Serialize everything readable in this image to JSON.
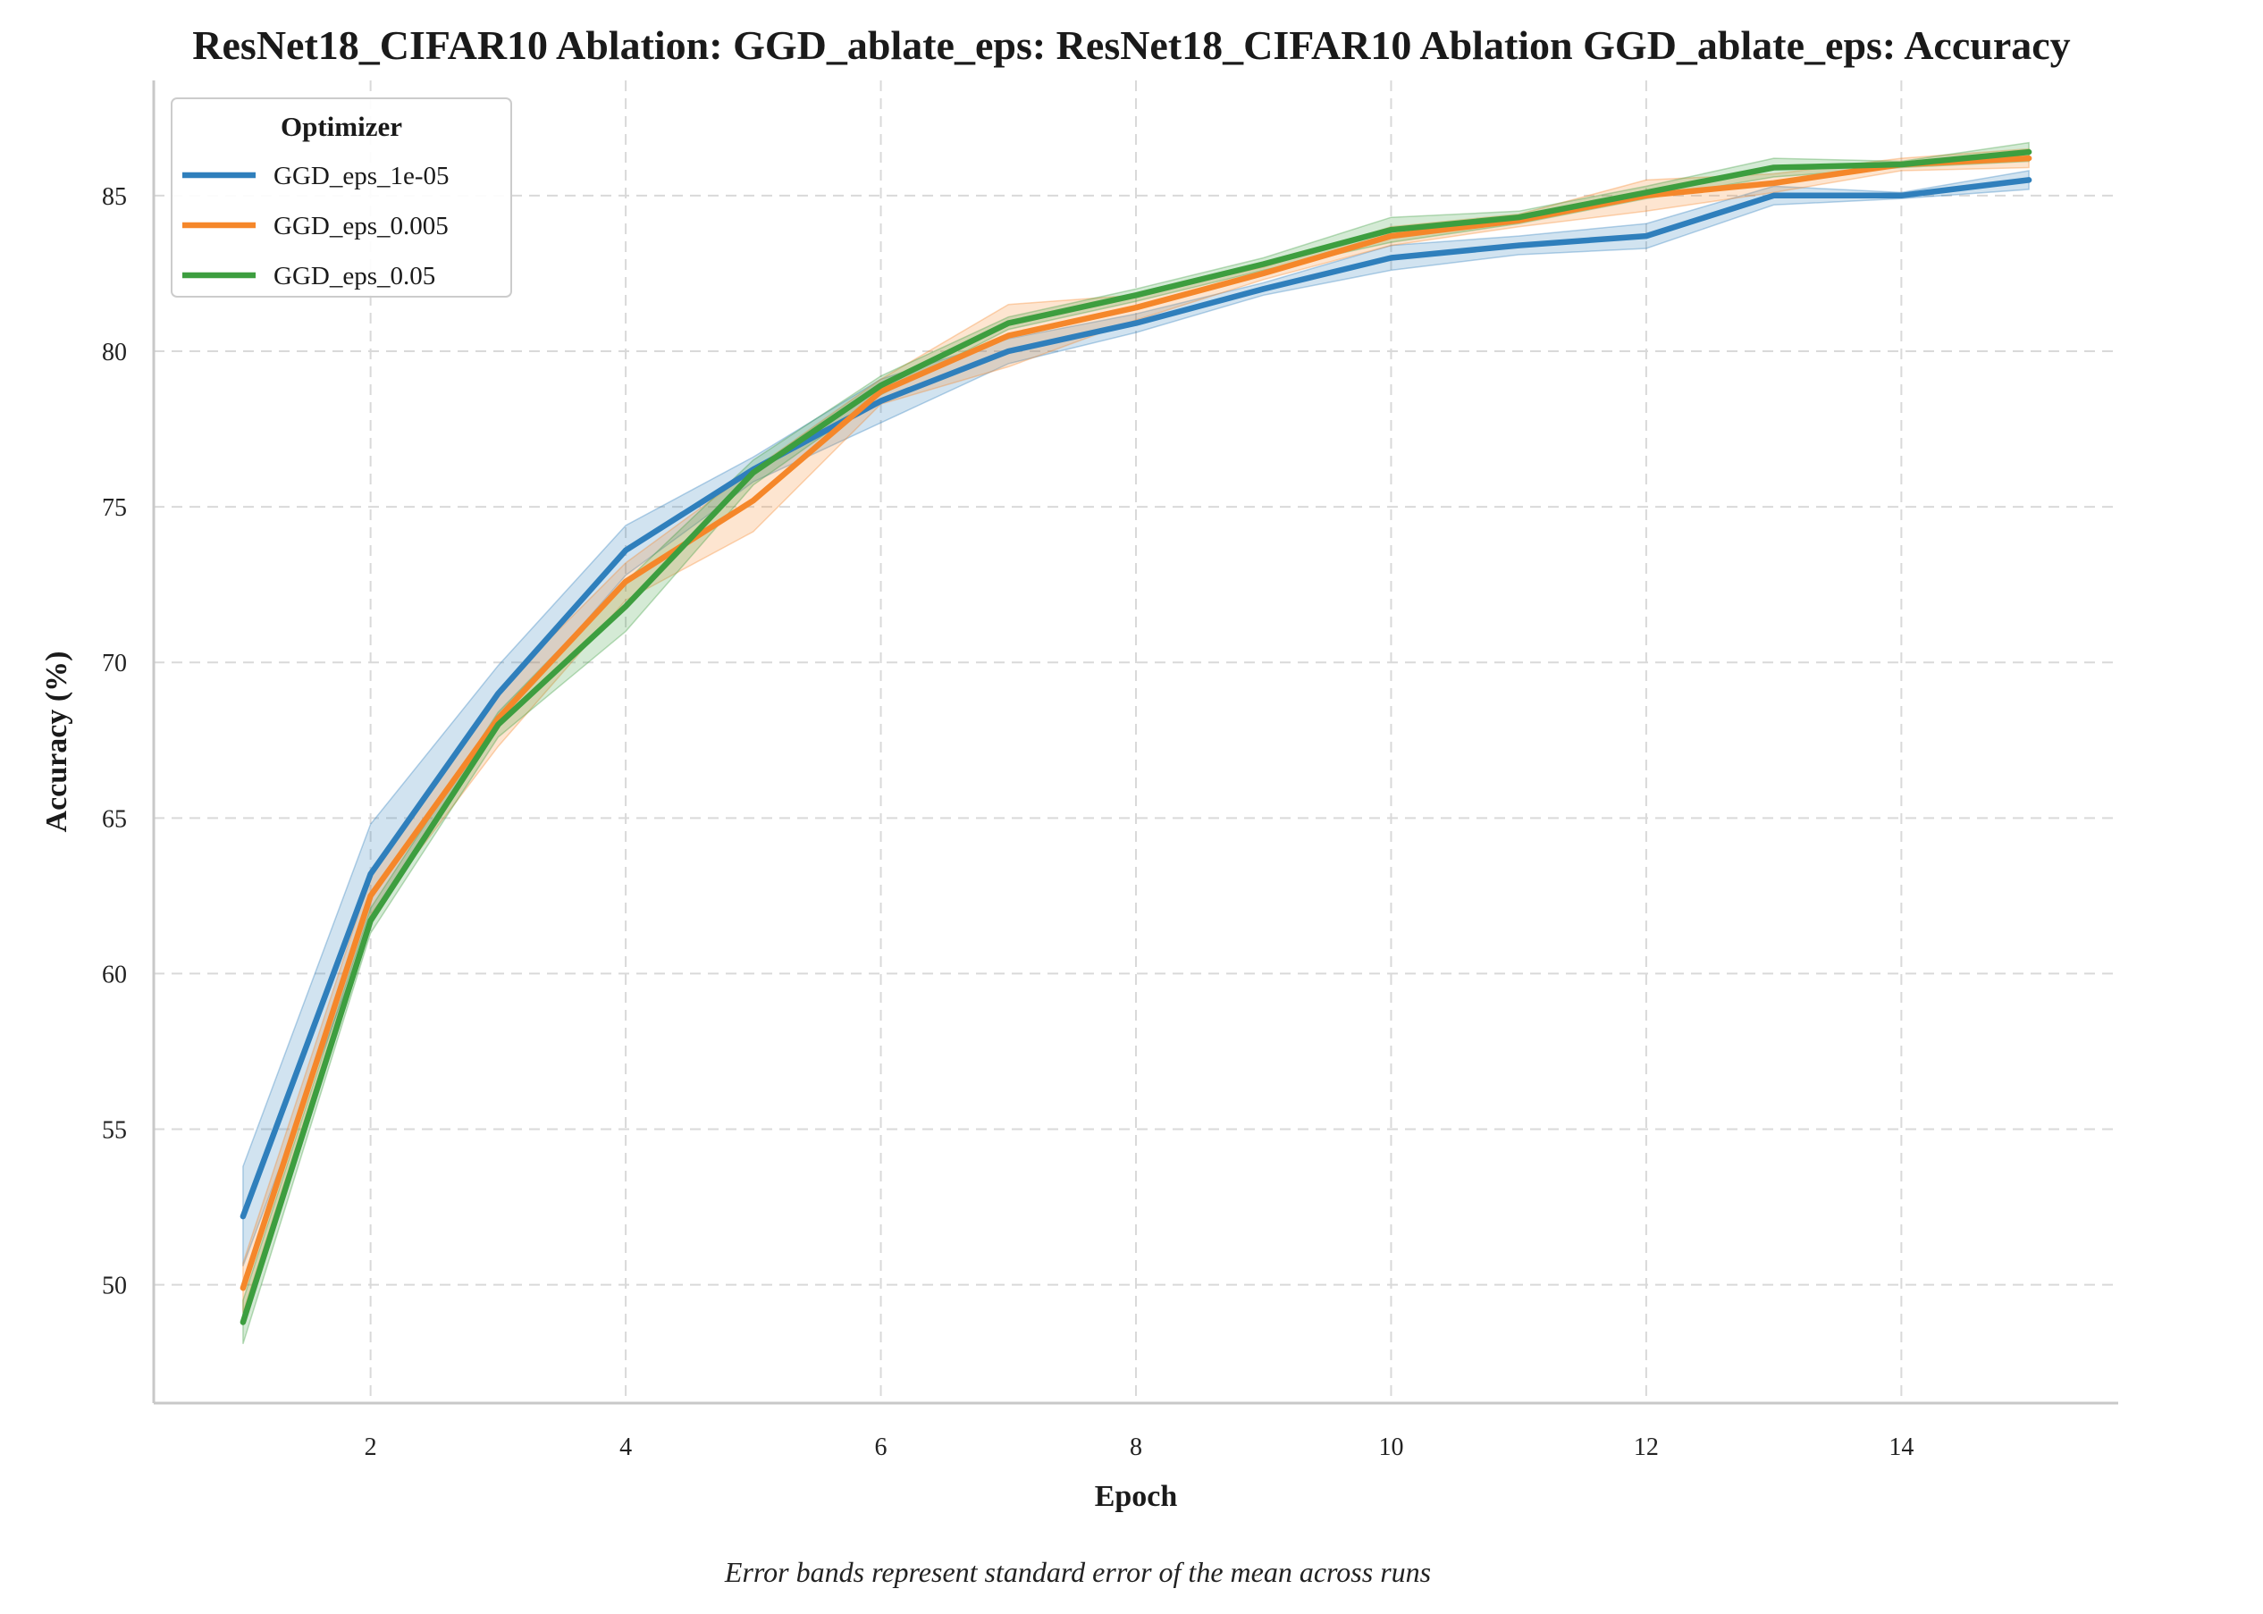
{
  "chart_data": {
    "type": "line",
    "title": "ResNet18_CIFAR10 Ablation: GGD_ablate_eps: ResNet18_CIFAR10 Ablation GGD_ablate_eps: Accuracy",
    "xlabel": "Epoch",
    "ylabel": "Accuracy (%)",
    "caption": "Error bands represent standard error of the mean across runs",
    "legend_title": "Optimizer",
    "legend_position": "top-left",
    "grid": true,
    "xlim": [
      0.3,
      15.7
    ],
    "ylim": [
      46.2,
      88.7
    ],
    "xticks": [
      2,
      4,
      6,
      8,
      10,
      12,
      14
    ],
    "yticks": [
      50,
      55,
      60,
      65,
      70,
      75,
      80,
      85
    ],
    "x": [
      1,
      2,
      3,
      4,
      5,
      6,
      7,
      8,
      9,
      10,
      11,
      12,
      13,
      14,
      15
    ],
    "series": [
      {
        "name": "GGD_eps_1e-05",
        "color": "#2f7fbc",
        "values": [
          52.2,
          63.2,
          69.0,
          73.6,
          76.2,
          78.4,
          80.0,
          80.9,
          82.0,
          83.0,
          83.4,
          83.7,
          85.0,
          85.0,
          85.5
        ],
        "lower": [
          50.6,
          61.6,
          68.1,
          72.8,
          75.8,
          77.7,
          79.6,
          80.6,
          81.8,
          82.6,
          83.1,
          83.3,
          84.7,
          84.9,
          85.2
        ],
        "upper": [
          53.8,
          64.8,
          69.9,
          74.4,
          76.6,
          79.1,
          80.4,
          81.2,
          82.2,
          83.4,
          83.7,
          84.1,
          85.3,
          85.1,
          85.8
        ]
      },
      {
        "name": "GGD_eps_0.005",
        "color": "#f5872a",
        "values": [
          49.9,
          62.5,
          68.2,
          72.6,
          75.2,
          78.7,
          80.5,
          81.4,
          82.5,
          83.7,
          84.2,
          85.0,
          85.4,
          86.0,
          86.2
        ],
        "lower": [
          49.1,
          61.9,
          67.3,
          72.0,
          74.2,
          78.3,
          79.5,
          81.0,
          82.3,
          83.4,
          84.0,
          84.5,
          85.1,
          85.8,
          85.9
        ],
        "upper": [
          50.7,
          63.1,
          69.1,
          73.2,
          76.2,
          79.1,
          81.5,
          81.8,
          82.7,
          84.0,
          84.4,
          85.5,
          85.7,
          86.2,
          86.5
        ]
      },
      {
        "name": "GGD_eps_0.05",
        "color": "#3d9e3f",
        "values": [
          48.8,
          61.7,
          68.0,
          71.8,
          76.1,
          78.9,
          80.9,
          81.8,
          82.8,
          83.9,
          84.3,
          85.1,
          85.9,
          86.0,
          86.4
        ],
        "lower": [
          48.1,
          61.3,
          67.6,
          71.0,
          75.7,
          78.6,
          80.7,
          81.6,
          82.6,
          83.5,
          84.1,
          84.9,
          85.6,
          85.9,
          86.1
        ],
        "upper": [
          49.5,
          62.1,
          68.4,
          72.6,
          76.5,
          79.2,
          81.1,
          82.0,
          83.0,
          84.3,
          84.5,
          85.3,
          86.2,
          86.1,
          86.7
        ]
      }
    ]
  }
}
